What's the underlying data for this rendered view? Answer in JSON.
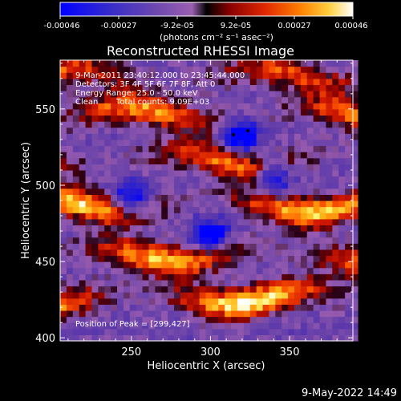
{
  "chart_data": {
    "type": "heatmap",
    "title": "Reconstructed RHESSI Image",
    "xlabel": "Heliocentric X (arcsec)",
    "ylabel": "Heliocentric Y (arcsec)",
    "xlim": [
      205,
      390
    ],
    "ylim": [
      398,
      582
    ],
    "xticks": [
      250,
      300,
      350
    ],
    "yticks": [
      400,
      450,
      500,
      550
    ],
    "colorbar": {
      "min": -0.00046,
      "max": 0.00046,
      "ticks": [
        "-0.00046",
        "-0.00027",
        "-9.2e-05",
        "9.2e-05",
        "0.00027",
        "0.00046"
      ],
      "units": "(photons cm⁻² s⁻¹ asec⁻²)"
    },
    "annotations": {
      "time": "9-Mar-2011 23:40:12.000 to 23:45:44.000",
      "detectors": "Detectors: 3F 4F 5F 6F 7F 8F, Att 0",
      "energy": "Energy Range: 25.0 - 50.0 keV",
      "method": "Clean",
      "counts": "Total counts: 9.09E+03",
      "peak": "Position of Peak = [299,427]"
    },
    "bands": [
      {
        "y": 427,
        "amp": 1.0
      },
      {
        "y": 455,
        "amp": 0.85
      },
      {
        "y": 487,
        "amp": 0.9
      },
      {
        "y": 517,
        "amp": 0.7
      },
      {
        "y": 547,
        "amp": 0.75
      },
      {
        "y": 572,
        "amp": 0.6
      }
    ],
    "minima": [
      [
        319,
        532
      ],
      [
        250,
        490
      ],
      [
        300,
        467
      ],
      [
        340,
        507
      ]
    ],
    "colors": {
      "scale": [
        "#0000ff",
        "#3a2ec8",
        "#5f3fa8",
        "#7a4fa5",
        "#9b5fb0",
        "#000000",
        "#800000",
        "#d02000",
        "#ff6000",
        "#ffb000",
        "#ffff80",
        "#ffffff"
      ],
      "background": "#000000",
      "foreground": "#ffffff"
    }
  },
  "footer": {
    "date": "9-May-2022 14:49"
  }
}
